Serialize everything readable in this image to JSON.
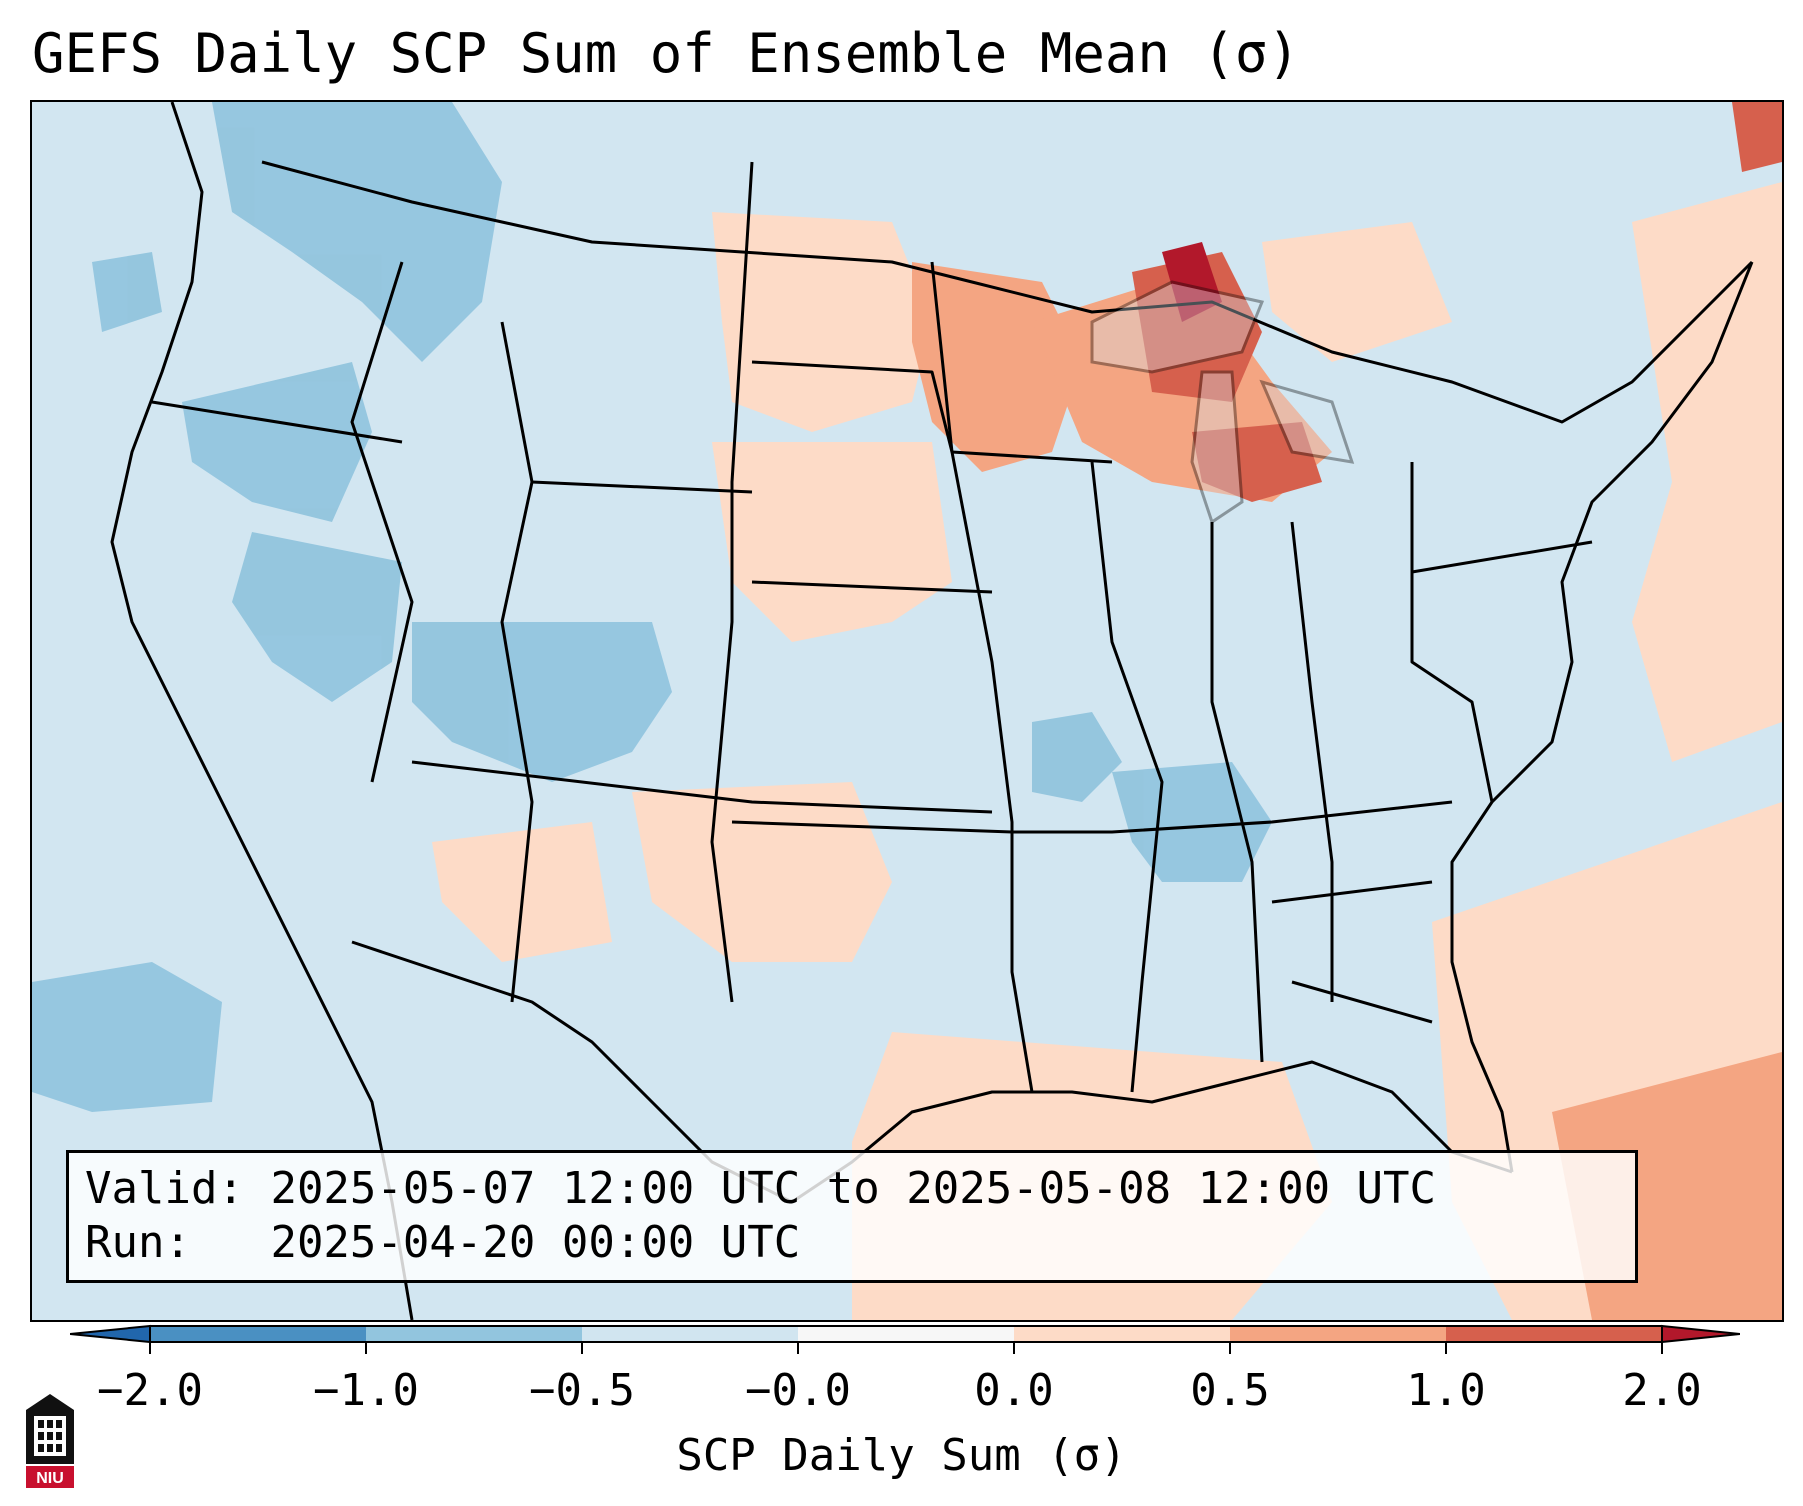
{
  "title": "GEFS Daily SCP Sum of Ensemble Mean (σ)",
  "info": {
    "valid_label": "Valid:",
    "valid_text": "2025-05-07 12:00 UTC to 2025-05-08 12:00 UTC",
    "run_label": "Run:",
    "run_text": "2025-04-20 00:00 UTC"
  },
  "colorbar": {
    "label": "SCP Daily Sum (σ)",
    "ticks": [
      "−2.0",
      "−1.0",
      "−0.5",
      "−0.0",
      "0.0",
      "0.5",
      "1.0",
      "2.0"
    ],
    "colors": [
      "#4a90c2",
      "#92c5de",
      "#d1e5f0",
      "#f7f7f7",
      "#fddbc7",
      "#f4a582",
      "#d6604d"
    ],
    "extend_low_color": "#2166ac",
    "extend_high_color": "#b2182b"
  },
  "logo": {
    "text": "NIU",
    "icon": "niu-tower-logo"
  },
  "map": {
    "projection": "Lambert Conformal (CONUS)",
    "background_value_color": "#d2e6f1",
    "highlight_region": "Upper Great Lakes / Lake Superior",
    "highlight_color": "#b2182b"
  }
}
